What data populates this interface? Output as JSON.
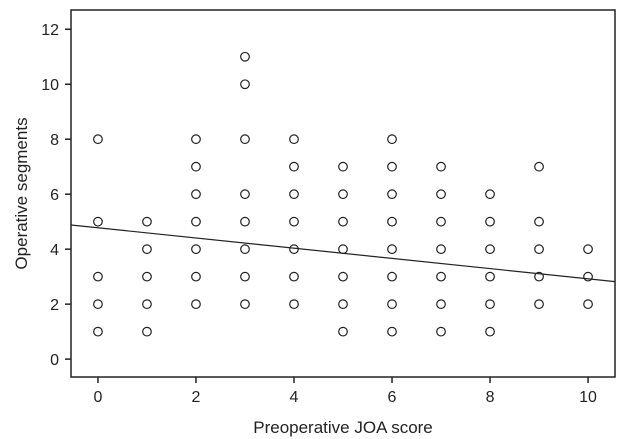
{
  "chart_data": {
    "type": "scatter",
    "title": "",
    "xlabel": "Preoperative JOA score",
    "ylabel": "Operative segments",
    "xlim": [
      -0.55,
      10.55
    ],
    "ylim": [
      -0.65,
      12.7
    ],
    "x_ticks": [
      0,
      2,
      4,
      6,
      8,
      10
    ],
    "y_ticks": [
      0,
      2,
      4,
      6,
      8,
      10,
      12
    ],
    "grid": false,
    "legend": "none",
    "marker": "open-circle",
    "colors": {
      "marker": "#222222",
      "line": "#222222",
      "axis": "#222222"
    },
    "points": [
      [
        0,
        8
      ],
      [
        0,
        5
      ],
      [
        0,
        3
      ],
      [
        0,
        2
      ],
      [
        0,
        1
      ],
      [
        1,
        5
      ],
      [
        1,
        4
      ],
      [
        1,
        3
      ],
      [
        1,
        2
      ],
      [
        1,
        1
      ],
      [
        2,
        8
      ],
      [
        2,
        7
      ],
      [
        2,
        6
      ],
      [
        2,
        5
      ],
      [
        2,
        4
      ],
      [
        2,
        3
      ],
      [
        2,
        2
      ],
      [
        3,
        11
      ],
      [
        3,
        10
      ],
      [
        3,
        8
      ],
      [
        3,
        6
      ],
      [
        3,
        5
      ],
      [
        3,
        4
      ],
      [
        3,
        3
      ],
      [
        3,
        2
      ],
      [
        4,
        8
      ],
      [
        4,
        7
      ],
      [
        4,
        6
      ],
      [
        4,
        5
      ],
      [
        4,
        4
      ],
      [
        4,
        3
      ],
      [
        4,
        2
      ],
      [
        5,
        7
      ],
      [
        5,
        6
      ],
      [
        5,
        5
      ],
      [
        5,
        4
      ],
      [
        5,
        3
      ],
      [
        5,
        2
      ],
      [
        5,
        1
      ],
      [
        6,
        8
      ],
      [
        6,
        7
      ],
      [
        6,
        6
      ],
      [
        6,
        5
      ],
      [
        6,
        4
      ],
      [
        6,
        3
      ],
      [
        6,
        2
      ],
      [
        6,
        1
      ],
      [
        7,
        7
      ],
      [
        7,
        6
      ],
      [
        7,
        5
      ],
      [
        7,
        4
      ],
      [
        7,
        3
      ],
      [
        7,
        2
      ],
      [
        7,
        1
      ],
      [
        8,
        6
      ],
      [
        8,
        5
      ],
      [
        8,
        4
      ],
      [
        8,
        3
      ],
      [
        8,
        2
      ],
      [
        8,
        1
      ],
      [
        9,
        7
      ],
      [
        9,
        5
      ],
      [
        9,
        4
      ],
      [
        9,
        3
      ],
      [
        9,
        2
      ],
      [
        10,
        4
      ],
      [
        10,
        3
      ],
      [
        10,
        2
      ]
    ],
    "regression_line": {
      "x": [
        -0.55,
        10.55
      ],
      "y": [
        4.88,
        2.82
      ]
    }
  }
}
